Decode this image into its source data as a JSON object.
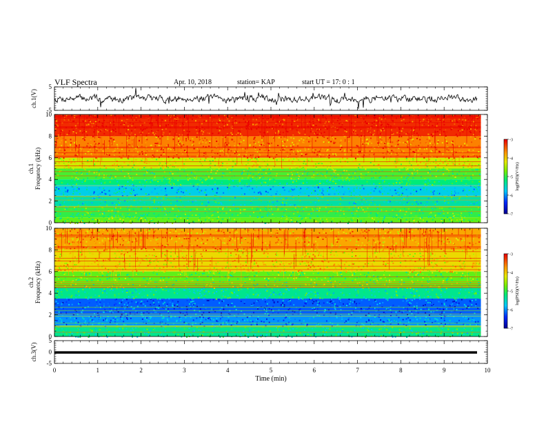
{
  "header": {
    "title": "VLF Spectra",
    "date": "Apr. 10, 2018",
    "station": "station= KAP",
    "start": "start  UT =  17: 0  : 1"
  },
  "chart_data": [
    {
      "type": "line",
      "panel": "ch1-waveform",
      "ylabel": "ch.1(V)",
      "ylim": [
        -5,
        5
      ],
      "yticks": [
        "5",
        "-5"
      ],
      "xlim": [
        0,
        10
      ],
      "line_color": "#000000"
    },
    {
      "type": "heatmap",
      "panel": "ch1-spectrogram",
      "ylabel_top": "ch.1",
      "ylabel": "Frequency (kHz)",
      "ylim": [
        0,
        10
      ],
      "yticks": [
        "0",
        "2",
        "4",
        "6",
        "8",
        "10"
      ],
      "xlim": [
        0,
        9.85
      ],
      "colorbar": {
        "label": "log(PSD)(V²/Hz)",
        "range": [
          -7,
          -3
        ],
        "ticks": [
          "-3",
          "-4",
          "-5",
          "-6",
          "-7"
        ]
      },
      "levels": [
        {
          "freq": [
            8.0,
            10.0
          ],
          "log_psd": -3.2
        },
        {
          "freq": [
            6.0,
            8.0
          ],
          "log_psd": -3.6
        },
        {
          "freq": [
            5.0,
            6.0
          ],
          "log_psd": -4.3
        },
        {
          "freq": [
            4.0,
            5.0
          ],
          "log_psd": -4.9
        },
        {
          "freq": [
            3.5,
            4.0
          ],
          "log_psd": -5.2
        },
        {
          "freq": [
            2.5,
            3.5
          ],
          "log_psd": -5.7
        },
        {
          "freq": [
            1.5,
            2.5
          ],
          "log_psd": -5.4
        },
        {
          "freq": [
            0.5,
            1.5
          ],
          "log_psd": -5.0
        },
        {
          "freq": [
            0.0,
            0.5
          ],
          "log_psd": -4.8
        }
      ]
    },
    {
      "type": "heatmap",
      "panel": "ch2-spectrogram",
      "ylabel_top": "ch.2",
      "ylabel": "Frequency (kHz)",
      "ylim": [
        0,
        10
      ],
      "yticks": [
        "0",
        "2",
        "4",
        "6",
        "8",
        "10"
      ],
      "xlim": [
        0,
        9.85
      ],
      "colorbar": {
        "label": "log(PSD)(V²/Hz)",
        "range": [
          -7,
          -3
        ],
        "ticks": [
          "-3",
          "-4",
          "-5",
          "-6",
          "-7"
        ]
      },
      "levels": [
        {
          "freq": [
            8.0,
            10.0
          ],
          "log_psd": -3.8
        },
        {
          "freq": [
            6.0,
            8.0
          ],
          "log_psd": -4.1
        },
        {
          "freq": [
            4.5,
            6.0
          ],
          "log_psd": -4.8
        },
        {
          "freq": [
            3.5,
            4.5
          ],
          "log_psd": -5.3
        },
        {
          "freq": [
            2.0,
            3.5
          ],
          "log_psd": -6.2
        },
        {
          "freq": [
            1.0,
            2.0
          ],
          "log_psd": -6.0
        },
        {
          "freq": [
            0.0,
            1.0
          ],
          "log_psd": -5.3
        }
      ]
    },
    {
      "type": "line",
      "panel": "ch3-waveform",
      "ylabel": "ch.3(V)",
      "ylim": [
        -5,
        5
      ],
      "yticks": [
        "5",
        "0",
        "-5"
      ],
      "xlim": [
        0,
        10
      ],
      "level": -0.2,
      "xlabel": "Time (min)",
      "xticks": [
        "0",
        "1",
        "2",
        "3",
        "4",
        "5",
        "6",
        "7",
        "8",
        "9",
        "10"
      ]
    }
  ]
}
